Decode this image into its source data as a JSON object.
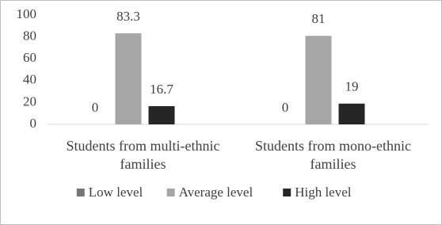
{
  "chart_data": {
    "type": "bar",
    "categories": [
      "Students from multi-ethnic families",
      "Students from mono-ethnic families"
    ],
    "series": [
      {
        "name": "Low level",
        "color": "#767676",
        "values": [
          0,
          0
        ]
      },
      {
        "name": "Average level",
        "color": "#a6a6a6",
        "values": [
          83.3,
          81
        ]
      },
      {
        "name": "High level",
        "color": "#262626",
        "values": [
          16.7,
          19
        ]
      }
    ],
    "ylim": [
      0,
      100
    ],
    "yticks": [
      0,
      20,
      40,
      60,
      80,
      100
    ],
    "grid": false,
    "legend": "bottom"
  }
}
